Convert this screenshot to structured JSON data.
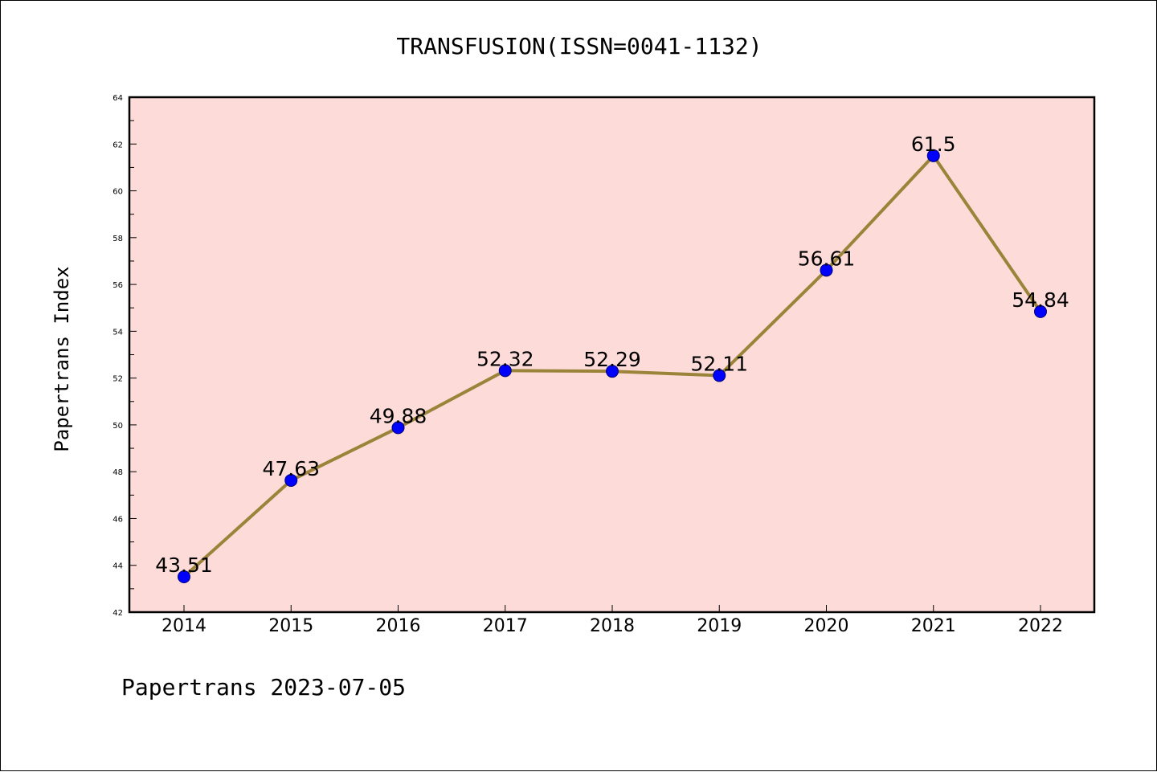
{
  "chart_data": {
    "type": "line",
    "title": "TRANSFUSION(ISSN=0041-1132)",
    "ylabel": "Papertrans Index",
    "xlabel": "",
    "footer": "Papertrans 2023-07-05",
    "x": [
      "2014",
      "2015",
      "2016",
      "2017",
      "2018",
      "2019",
      "2020",
      "2021",
      "2022"
    ],
    "values": [
      43.51,
      47.63,
      49.88,
      52.32,
      52.29,
      52.11,
      56.61,
      61.5,
      54.84
    ],
    "labels": [
      "43.51",
      "47.63",
      "49.88",
      "52.32",
      "52.29",
      "52.11",
      "56.61",
      "61.5",
      "54.84"
    ],
    "ylim": [
      42,
      64
    ],
    "yticks": [
      42,
      44,
      46,
      48,
      50,
      52,
      54,
      56,
      58,
      60,
      62,
      64
    ],
    "grid": false,
    "colors": {
      "plot_background": "#fddbd8",
      "line": "#9b8439",
      "marker": "#0000ff",
      "axes": "#000000"
    }
  }
}
